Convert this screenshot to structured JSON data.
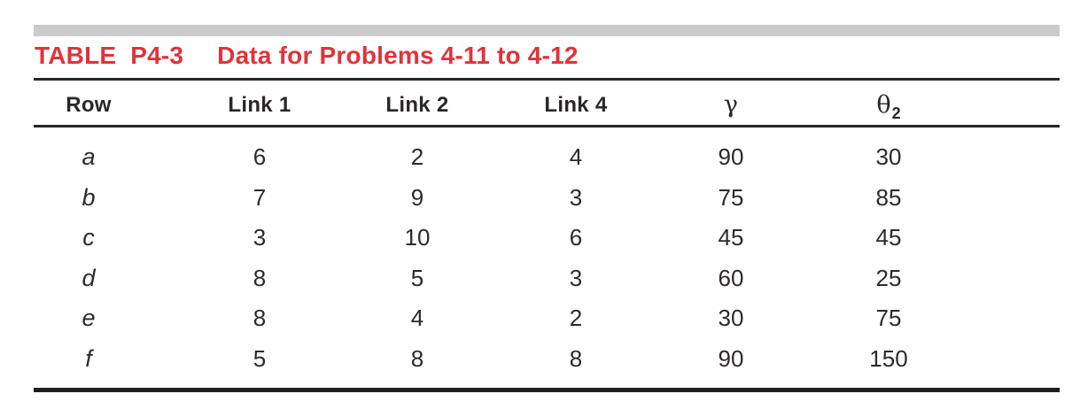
{
  "page": {
    "background_color": "#ffffff",
    "accent_color": "#e0333b",
    "bar_color": "#cbcbcb",
    "text_color": "#2b2627"
  },
  "table": {
    "label": "TABLE P4-3",
    "title": "Data for Problems 4-11 to 4-12",
    "columns": [
      {
        "label": "Row"
      },
      {
        "label": "Link 1"
      },
      {
        "label": "Link 2"
      },
      {
        "label": "Link 4"
      },
      {
        "label": "γ",
        "greek": true
      },
      {
        "label": "θ",
        "subscript": "2",
        "greek": true
      }
    ],
    "rows": [
      {
        "row": "a",
        "link1": "6",
        "link2": "2",
        "link4": "4",
        "gamma": "90",
        "theta2": "30"
      },
      {
        "row": "b",
        "link1": "7",
        "link2": "9",
        "link4": "3",
        "gamma": "75",
        "theta2": "85"
      },
      {
        "row": "c",
        "link1": "3",
        "link2": "10",
        "link4": "6",
        "gamma": "45",
        "theta2": "45"
      },
      {
        "row": "d",
        "link1": "8",
        "link2": "5",
        "link4": "3",
        "gamma": "60",
        "theta2": "25"
      },
      {
        "row": "e",
        "link1": "8",
        "link2": "4",
        "link4": "2",
        "gamma": "30",
        "theta2": "75"
      },
      {
        "row": "f",
        "link1": "5",
        "link2": "8",
        "link4": "8",
        "gamma": "90",
        "theta2": "150"
      }
    ]
  }
}
